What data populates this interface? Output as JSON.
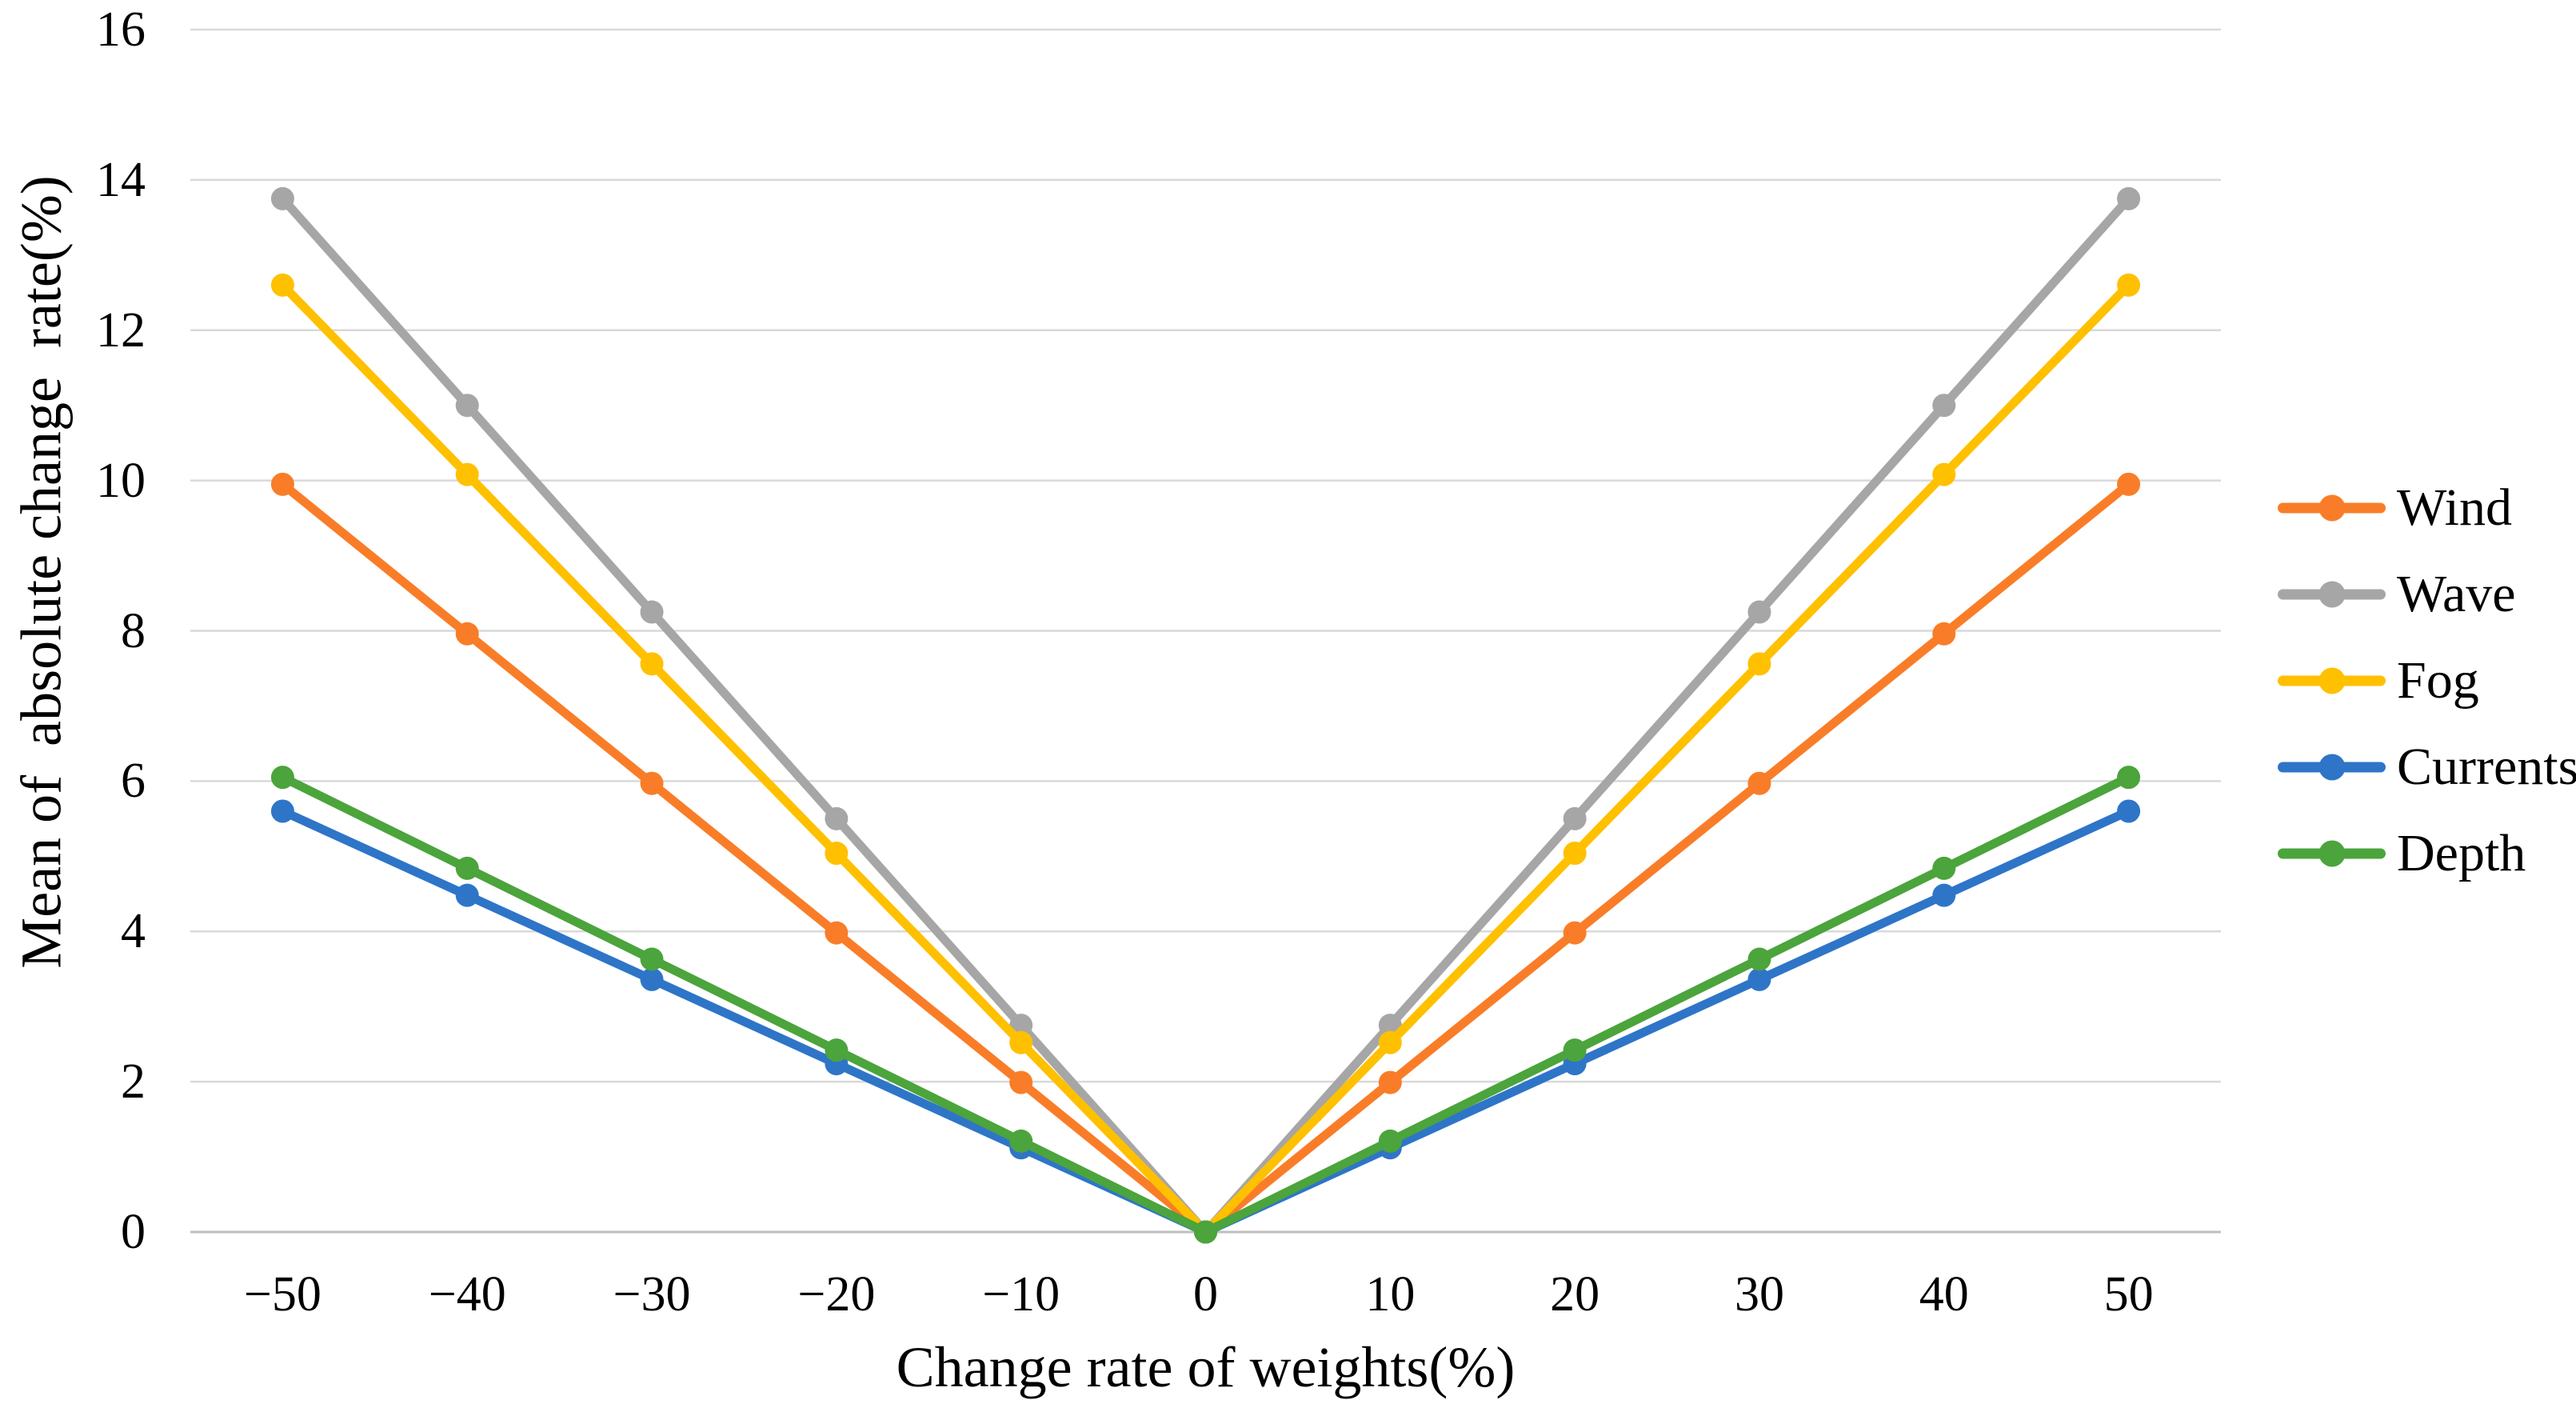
{
  "chart_data": {
    "type": "line",
    "title": "",
    "xlabel": "Change rate of weights(%)",
    "ylabel": "Mean of  absolute change  rate(%)",
    "x_values": [
      -50,
      -40,
      -30,
      -20,
      -10,
      0,
      10,
      20,
      30,
      40,
      50
    ],
    "x_categories": [
      "−50",
      "−40",
      "−30",
      "−20",
      "−10",
      "0",
      "10",
      "20",
      "30",
      "40",
      "50"
    ],
    "y_ticks": [
      "0",
      "2",
      "4",
      "6",
      "8",
      "10",
      "12",
      "14",
      "16"
    ],
    "y_tick_values": [
      0,
      2,
      4,
      6,
      8,
      10,
      12,
      14,
      16
    ],
    "ylim": [
      0,
      16
    ],
    "grid": "horizontal",
    "marker": "circle",
    "legend_position": "right",
    "colors": {
      "gridline": "#D9D9D9",
      "axis_line": "#BFBFBF",
      "text": "#000000"
    },
    "series": [
      {
        "name": "Wind",
        "color": "#F97D28",
        "values": [
          9.95,
          7.96,
          5.97,
          3.98,
          1.99,
          0,
          1.99,
          3.98,
          5.97,
          7.96,
          9.95
        ]
      },
      {
        "name": "Wave",
        "color": "#A6A6A6",
        "values": [
          13.75,
          11.0,
          8.25,
          5.5,
          2.75,
          0,
          2.75,
          5.5,
          8.25,
          11.0,
          13.75
        ]
      },
      {
        "name": "Fog",
        "color": "#FFC000",
        "values": [
          12.6,
          10.08,
          7.56,
          5.04,
          2.52,
          0,
          2.52,
          5.04,
          7.56,
          10.08,
          12.6
        ]
      },
      {
        "name": "Currents",
        "color": "#2E75C8",
        "values": [
          5.6,
          4.48,
          3.36,
          2.24,
          1.12,
          0,
          1.12,
          2.24,
          3.36,
          4.48,
          5.6
        ]
      },
      {
        "name": "Depth",
        "color": "#4BA43C",
        "values": [
          6.05,
          4.84,
          3.63,
          2.42,
          1.21,
          0,
          1.21,
          2.42,
          3.63,
          4.84,
          6.05
        ]
      }
    ]
  }
}
